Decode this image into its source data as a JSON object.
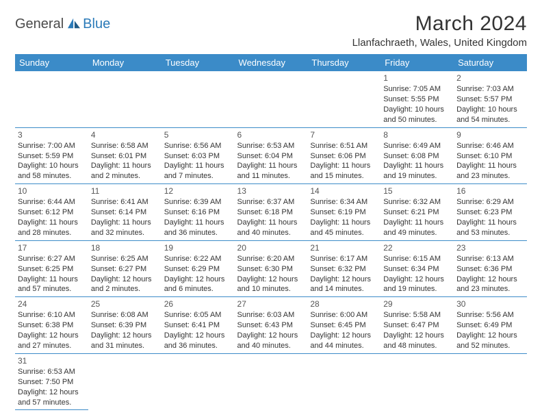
{
  "logo": {
    "part1": "General",
    "part2": "Blue"
  },
  "title": "March 2024",
  "location": "Llanfachraeth, Wales, United Kingdom",
  "colors": {
    "header_bg": "#3b8bc8",
    "header_text": "#ffffff",
    "border": "#3b8bc8",
    "logo_blue": "#2a7ab8",
    "logo_gray": "#4a4a4a"
  },
  "weekdays": [
    "Sunday",
    "Monday",
    "Tuesday",
    "Wednesday",
    "Thursday",
    "Friday",
    "Saturday"
  ],
  "cells": [
    [
      null,
      null,
      null,
      null,
      null,
      {
        "n": "1",
        "sr": "Sunrise: 7:05 AM",
        "ss": "Sunset: 5:55 PM",
        "dl": "Daylight: 10 hours and 50 minutes."
      },
      {
        "n": "2",
        "sr": "Sunrise: 7:03 AM",
        "ss": "Sunset: 5:57 PM",
        "dl": "Daylight: 10 hours and 54 minutes."
      }
    ],
    [
      {
        "n": "3",
        "sr": "Sunrise: 7:00 AM",
        "ss": "Sunset: 5:59 PM",
        "dl": "Daylight: 10 hours and 58 minutes."
      },
      {
        "n": "4",
        "sr": "Sunrise: 6:58 AM",
        "ss": "Sunset: 6:01 PM",
        "dl": "Daylight: 11 hours and 2 minutes."
      },
      {
        "n": "5",
        "sr": "Sunrise: 6:56 AM",
        "ss": "Sunset: 6:03 PM",
        "dl": "Daylight: 11 hours and 7 minutes."
      },
      {
        "n": "6",
        "sr": "Sunrise: 6:53 AM",
        "ss": "Sunset: 6:04 PM",
        "dl": "Daylight: 11 hours and 11 minutes."
      },
      {
        "n": "7",
        "sr": "Sunrise: 6:51 AM",
        "ss": "Sunset: 6:06 PM",
        "dl": "Daylight: 11 hours and 15 minutes."
      },
      {
        "n": "8",
        "sr": "Sunrise: 6:49 AM",
        "ss": "Sunset: 6:08 PM",
        "dl": "Daylight: 11 hours and 19 minutes."
      },
      {
        "n": "9",
        "sr": "Sunrise: 6:46 AM",
        "ss": "Sunset: 6:10 PM",
        "dl": "Daylight: 11 hours and 23 minutes."
      }
    ],
    [
      {
        "n": "10",
        "sr": "Sunrise: 6:44 AM",
        "ss": "Sunset: 6:12 PM",
        "dl": "Daylight: 11 hours and 28 minutes."
      },
      {
        "n": "11",
        "sr": "Sunrise: 6:41 AM",
        "ss": "Sunset: 6:14 PM",
        "dl": "Daylight: 11 hours and 32 minutes."
      },
      {
        "n": "12",
        "sr": "Sunrise: 6:39 AM",
        "ss": "Sunset: 6:16 PM",
        "dl": "Daylight: 11 hours and 36 minutes."
      },
      {
        "n": "13",
        "sr": "Sunrise: 6:37 AM",
        "ss": "Sunset: 6:18 PM",
        "dl": "Daylight: 11 hours and 40 minutes."
      },
      {
        "n": "14",
        "sr": "Sunrise: 6:34 AM",
        "ss": "Sunset: 6:19 PM",
        "dl": "Daylight: 11 hours and 45 minutes."
      },
      {
        "n": "15",
        "sr": "Sunrise: 6:32 AM",
        "ss": "Sunset: 6:21 PM",
        "dl": "Daylight: 11 hours and 49 minutes."
      },
      {
        "n": "16",
        "sr": "Sunrise: 6:29 AM",
        "ss": "Sunset: 6:23 PM",
        "dl": "Daylight: 11 hours and 53 minutes."
      }
    ],
    [
      {
        "n": "17",
        "sr": "Sunrise: 6:27 AM",
        "ss": "Sunset: 6:25 PM",
        "dl": "Daylight: 11 hours and 57 minutes."
      },
      {
        "n": "18",
        "sr": "Sunrise: 6:25 AM",
        "ss": "Sunset: 6:27 PM",
        "dl": "Daylight: 12 hours and 2 minutes."
      },
      {
        "n": "19",
        "sr": "Sunrise: 6:22 AM",
        "ss": "Sunset: 6:29 PM",
        "dl": "Daylight: 12 hours and 6 minutes."
      },
      {
        "n": "20",
        "sr": "Sunrise: 6:20 AM",
        "ss": "Sunset: 6:30 PM",
        "dl": "Daylight: 12 hours and 10 minutes."
      },
      {
        "n": "21",
        "sr": "Sunrise: 6:17 AM",
        "ss": "Sunset: 6:32 PM",
        "dl": "Daylight: 12 hours and 14 minutes."
      },
      {
        "n": "22",
        "sr": "Sunrise: 6:15 AM",
        "ss": "Sunset: 6:34 PM",
        "dl": "Daylight: 12 hours and 19 minutes."
      },
      {
        "n": "23",
        "sr": "Sunrise: 6:13 AM",
        "ss": "Sunset: 6:36 PM",
        "dl": "Daylight: 12 hours and 23 minutes."
      }
    ],
    [
      {
        "n": "24",
        "sr": "Sunrise: 6:10 AM",
        "ss": "Sunset: 6:38 PM",
        "dl": "Daylight: 12 hours and 27 minutes."
      },
      {
        "n": "25",
        "sr": "Sunrise: 6:08 AM",
        "ss": "Sunset: 6:39 PM",
        "dl": "Daylight: 12 hours and 31 minutes."
      },
      {
        "n": "26",
        "sr": "Sunrise: 6:05 AM",
        "ss": "Sunset: 6:41 PM",
        "dl": "Daylight: 12 hours and 36 minutes."
      },
      {
        "n": "27",
        "sr": "Sunrise: 6:03 AM",
        "ss": "Sunset: 6:43 PM",
        "dl": "Daylight: 12 hours and 40 minutes."
      },
      {
        "n": "28",
        "sr": "Sunrise: 6:00 AM",
        "ss": "Sunset: 6:45 PM",
        "dl": "Daylight: 12 hours and 44 minutes."
      },
      {
        "n": "29",
        "sr": "Sunrise: 5:58 AM",
        "ss": "Sunset: 6:47 PM",
        "dl": "Daylight: 12 hours and 48 minutes."
      },
      {
        "n": "30",
        "sr": "Sunrise: 5:56 AM",
        "ss": "Sunset: 6:49 PM",
        "dl": "Daylight: 12 hours and 52 minutes."
      }
    ],
    [
      {
        "n": "31",
        "sr": "Sunrise: 6:53 AM",
        "ss": "Sunset: 7:50 PM",
        "dl": "Daylight: 12 hours and 57 minutes."
      },
      null,
      null,
      null,
      null,
      null,
      null
    ]
  ]
}
